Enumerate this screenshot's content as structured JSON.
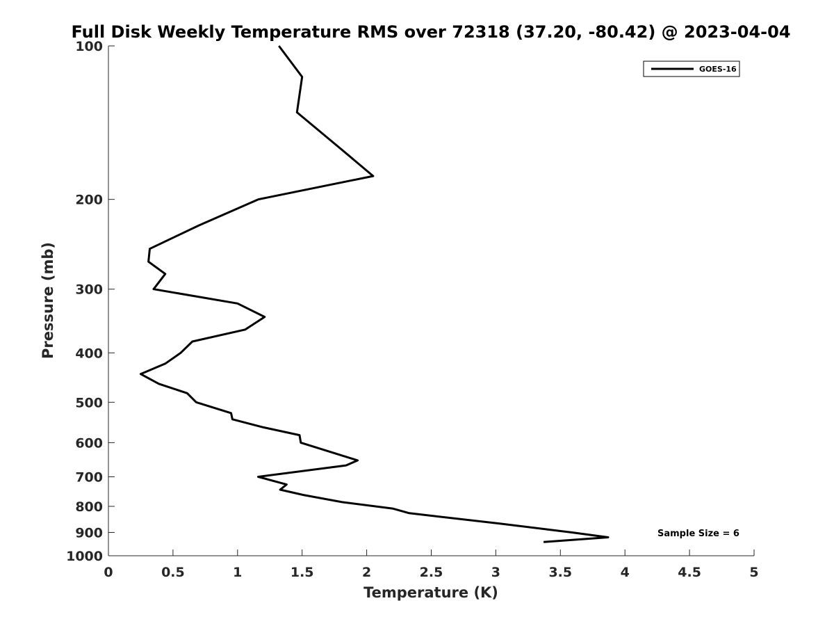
{
  "chart_data": {
    "type": "line",
    "title": "Full Disk Weekly Temperature RMS over 72318 (37.20, -80.42) @ 2023-04-04",
    "xlabel": "Temperature (K)",
    "ylabel": "Pressure (mb)",
    "xlim": [
      0,
      5
    ],
    "ylim": [
      1000,
      100
    ],
    "yscale": "log",
    "x_ticks": [
      "0",
      "0.5",
      "1",
      "1.5",
      "2",
      "2.5",
      "3",
      "3.5",
      "4",
      "4.5",
      "5"
    ],
    "y_ticks": [
      "100",
      "200",
      "300",
      "400",
      "500",
      "600",
      "700",
      "800",
      "900",
      "1000"
    ],
    "grid": false,
    "legend_position": "top-right",
    "series": [
      {
        "name": "GOES-16",
        "color": "#000000",
        "points": [
          [
            1.32,
            100
          ],
          [
            1.5,
            115
          ],
          [
            1.46,
            135
          ],
          [
            1.81,
            160
          ],
          [
            2.05,
            180
          ],
          [
            1.16,
            200
          ],
          [
            0.7,
            225
          ],
          [
            0.32,
            250
          ],
          [
            0.31,
            265
          ],
          [
            0.44,
            280
          ],
          [
            0.35,
            300
          ],
          [
            1.0,
            320
          ],
          [
            1.21,
            340
          ],
          [
            1.06,
            360
          ],
          [
            0.65,
            380
          ],
          [
            0.56,
            400
          ],
          [
            0.44,
            420
          ],
          [
            0.25,
            440
          ],
          [
            0.39,
            460
          ],
          [
            0.61,
            480
          ],
          [
            0.68,
            500
          ],
          [
            0.95,
            525
          ],
          [
            0.96,
            540
          ],
          [
            1.2,
            560
          ],
          [
            1.48,
            580
          ],
          [
            1.49,
            600
          ],
          [
            1.93,
            650
          ],
          [
            1.84,
            665
          ],
          [
            1.16,
            700
          ],
          [
            1.38,
            725
          ],
          [
            1.33,
            742
          ],
          [
            1.51,
            760
          ],
          [
            1.81,
            785
          ],
          [
            2.2,
            808
          ],
          [
            2.33,
            825
          ],
          [
            3.03,
            865
          ],
          [
            3.59,
            900
          ],
          [
            3.87,
            920
          ],
          [
            3.37,
            940
          ]
        ]
      }
    ],
    "annotations": [
      {
        "text": "Sample Size = 6",
        "position": "bottom-right"
      }
    ]
  }
}
